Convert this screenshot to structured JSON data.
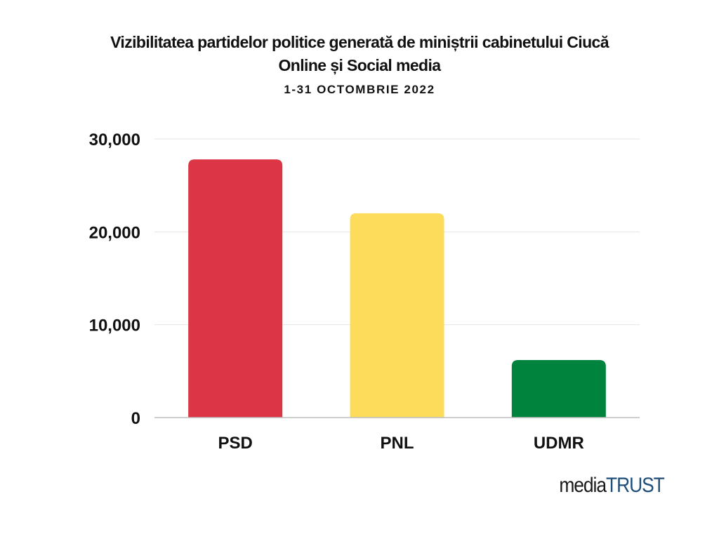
{
  "chart_data": {
    "type": "bar",
    "title_lines": [
      "Vizibilitatea partidelor politice generată de miniștrii cabinetului Ciucă",
      "Online și Social media"
    ],
    "subtitle": "1-31 OCTOMBRIE 2022",
    "categories": [
      "PSD",
      "PNL",
      "UDMR"
    ],
    "values": [
      27800,
      22000,
      6200
    ],
    "colors": [
      "#dc3545",
      "#fddc5c",
      "#00843d"
    ],
    "ylim": [
      0,
      30000
    ],
    "yticks": [
      0,
      10000,
      20000,
      30000
    ],
    "ytick_labels": [
      "0",
      "10,000",
      "20,000",
      "30,000"
    ],
    "grid": true,
    "legend": "none"
  },
  "logo": {
    "part1": "media",
    "part2": "TRUST",
    "color_part2": "#1f4e79"
  }
}
